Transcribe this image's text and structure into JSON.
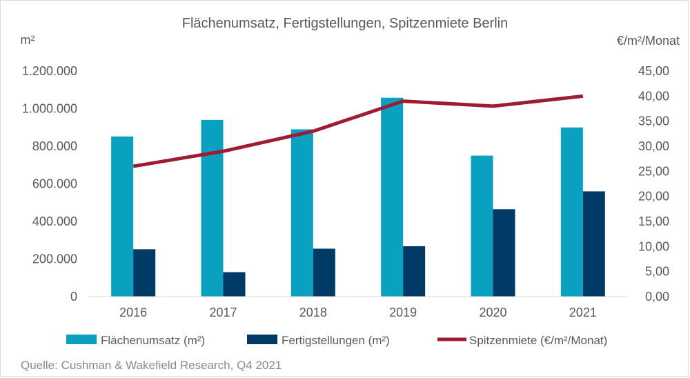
{
  "chart_data": {
    "type": "bar",
    "title": "Flächenumsatz, Fertigstellungen, Spitzenmiete Berlin",
    "categories": [
      "2016",
      "2017",
      "2018",
      "2019",
      "2020",
      "2021"
    ],
    "series": [
      {
        "name": "Flächenumsatz (m²)",
        "axis": "left",
        "kind": "bar",
        "color": "#0aa0c0",
        "values": [
          852000,
          940000,
          890000,
          1058000,
          750000,
          900000
        ]
      },
      {
        "name": "Fertigstellungen (m²)",
        "axis": "left",
        "kind": "bar",
        "color": "#003a66",
        "values": [
          252000,
          130000,
          255000,
          268000,
          465000,
          560000
        ]
      },
      {
        "name": "Spitzenmiete (€/m²/Monat)",
        "axis": "right",
        "kind": "line",
        "color": "#9e1b32",
        "values": [
          26.0,
          29.0,
          33.0,
          39.0,
          38.0,
          40.0
        ]
      }
    ],
    "y_left": {
      "label": "m²",
      "min": 0,
      "max": 1200000,
      "tick_labels": [
        "0",
        "200.000",
        "400.000",
        "600.000",
        "800.000",
        "1.000.000",
        "1.200.000"
      ]
    },
    "y_right": {
      "label": "€/m²/Monat",
      "min": 0,
      "max": 45,
      "tick_labels": [
        "0,00",
        "5,00",
        "10,00",
        "15,00",
        "20,00",
        "25,00",
        "30,00",
        "35,00",
        "40,00",
        "45,00"
      ]
    },
    "grid": false,
    "legend_position": "bottom"
  },
  "source": "Quelle: Cushman & Wakefield Research, Q4 2021"
}
